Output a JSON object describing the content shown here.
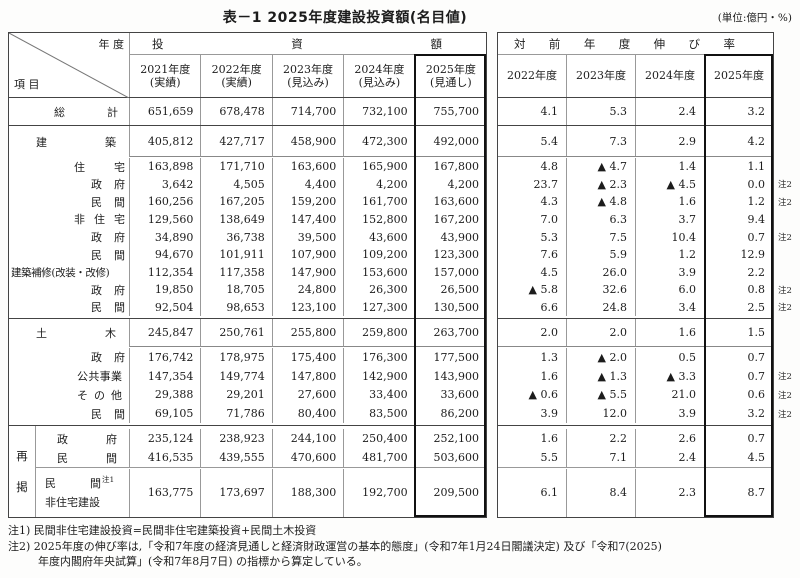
{
  "title": "表－1 2025年度建設投資額(名目値)",
  "unit": "(単位:億円・%)",
  "header": {
    "axis_year": "年 度",
    "axis_item": "項 目",
    "inv_group": "投資額",
    "growth_group": "対前年度伸び率",
    "inv_years": [
      "2021年度",
      "2022年度",
      "2023年度",
      "2024年度",
      "2025年度"
    ],
    "inv_notes": [
      "(実績)",
      "(実績)",
      "(見込み)",
      "(見込み)",
      "(見通し)"
    ],
    "growth_years": [
      "2022年度",
      "2023年度",
      "2024年度",
      "2025年度"
    ]
  },
  "saikei_label": "再掲",
  "rows": [
    {
      "label": "総計",
      "inv": [
        "651,659",
        "678,478",
        "714,700",
        "732,100",
        "755,700"
      ],
      "growth": [
        "4.1",
        "5.3",
        "2.4",
        "3.2"
      ],
      "note": ""
    },
    {
      "label": "建築",
      "inv": [
        "405,812",
        "427,717",
        "458,900",
        "472,300",
        "492,000"
      ],
      "growth": [
        "5.4",
        "7.3",
        "2.9",
        "4.2"
      ],
      "note": ""
    },
    {
      "label": "住宅",
      "inv": [
        "163,898",
        "171,710",
        "163,600",
        "165,900",
        "167,800"
      ],
      "growth": [
        "4.8",
        "▲ 4.7",
        "1.4",
        "1.1"
      ],
      "note": ""
    },
    {
      "label": "政府",
      "inv": [
        "3,642",
        "4,505",
        "4,400",
        "4,200",
        "4,200"
      ],
      "growth": [
        "23.7",
        "▲ 2.3",
        "▲ 4.5",
        "0.0"
      ],
      "note": "注2"
    },
    {
      "label": "民間",
      "inv": [
        "160,256",
        "167,205",
        "159,200",
        "161,700",
        "163,600"
      ],
      "growth": [
        "4.3",
        "▲ 4.8",
        "1.6",
        "1.2"
      ],
      "note": "注2"
    },
    {
      "label": "非住宅",
      "inv": [
        "129,560",
        "138,649",
        "147,400",
        "152,800",
        "167,200"
      ],
      "growth": [
        "7.0",
        "6.3",
        "3.7",
        "9.4"
      ],
      "note": ""
    },
    {
      "label": "政府",
      "inv": [
        "34,890",
        "36,738",
        "39,500",
        "43,600",
        "43,900"
      ],
      "growth": [
        "5.3",
        "7.5",
        "10.4",
        "0.7"
      ],
      "note": "注2"
    },
    {
      "label": "民間",
      "inv": [
        "94,670",
        "101,911",
        "107,900",
        "109,200",
        "123,300"
      ],
      "growth": [
        "7.6",
        "5.9",
        "1.2",
        "12.9"
      ],
      "note": ""
    },
    {
      "label": "建築補修(改装・改修)",
      "inv": [
        "112,354",
        "117,358",
        "147,900",
        "153,600",
        "157,000"
      ],
      "growth": [
        "4.5",
        "26.0",
        "3.9",
        "2.2"
      ],
      "note": ""
    },
    {
      "label": "政府",
      "inv": [
        "19,850",
        "18,705",
        "24,800",
        "26,300",
        "26,500"
      ],
      "growth": [
        "▲ 5.8",
        "32.6",
        "6.0",
        "0.8"
      ],
      "note": "注2"
    },
    {
      "label": "民間",
      "inv": [
        "92,504",
        "98,653",
        "123,100",
        "127,300",
        "130,500"
      ],
      "growth": [
        "6.6",
        "24.8",
        "3.4",
        "2.5"
      ],
      "note": "注2"
    },
    {
      "label": "土木",
      "inv": [
        "245,847",
        "250,761",
        "255,800",
        "259,800",
        "263,700"
      ],
      "growth": [
        "2.0",
        "2.0",
        "1.6",
        "1.5"
      ],
      "note": ""
    },
    {
      "label": "政府",
      "inv": [
        "176,742",
        "178,975",
        "175,400",
        "176,300",
        "177,500"
      ],
      "growth": [
        "1.3",
        "▲ 2.0",
        "0.5",
        "0.7"
      ],
      "note": ""
    },
    {
      "label": "公共事業",
      "inv": [
        "147,354",
        "149,774",
        "147,800",
        "142,900",
        "143,900"
      ],
      "growth": [
        "1.6",
        "▲ 1.3",
        "▲ 3.3",
        "0.7"
      ],
      "note": "注2"
    },
    {
      "label": "その他",
      "inv": [
        "29,388",
        "29,201",
        "27,600",
        "33,400",
        "33,600"
      ],
      "growth": [
        "▲ 0.6",
        "▲ 5.5",
        "21.0",
        "0.6"
      ],
      "note": "注2"
    },
    {
      "label": "民間",
      "inv": [
        "69,105",
        "71,786",
        "80,400",
        "83,500",
        "86,200"
      ],
      "growth": [
        "3.9",
        "12.0",
        "3.9",
        "3.2"
      ],
      "note": "注2"
    },
    {
      "label": "政府",
      "inv": [
        "235,124",
        "238,923",
        "244,100",
        "250,400",
        "252,100"
      ],
      "growth": [
        "1.6",
        "2.2",
        "2.6",
        "0.7"
      ],
      "note": ""
    },
    {
      "label": "民間",
      "inv": [
        "416,535",
        "439,555",
        "470,600",
        "481,700",
        "503,600"
      ],
      "growth": [
        "5.5",
        "7.1",
        "2.4",
        "4.5"
      ],
      "note": ""
    },
    {
      "label": "民間",
      "sup": "注1",
      "label2": "非住宅建設",
      "inv": [
        "163,775",
        "173,697",
        "188,300",
        "192,700",
        "209,500"
      ],
      "growth": [
        "6.1",
        "8.4",
        "2.3",
        "8.7"
      ],
      "note": ""
    }
  ],
  "notes": [
    "注1) 民間非住宅建設投資=民間非住宅建築投資+民間土木投資",
    "注2) 2025年度の伸び率は,「令和7年度の経済見通しと経済財政運営の基本的態度」(令和7年1月24日閣議決定) 及び「令和7(2025)",
    "年度内閣府年央試算」(令和7年8月7日) の指標から算定している。"
  ]
}
